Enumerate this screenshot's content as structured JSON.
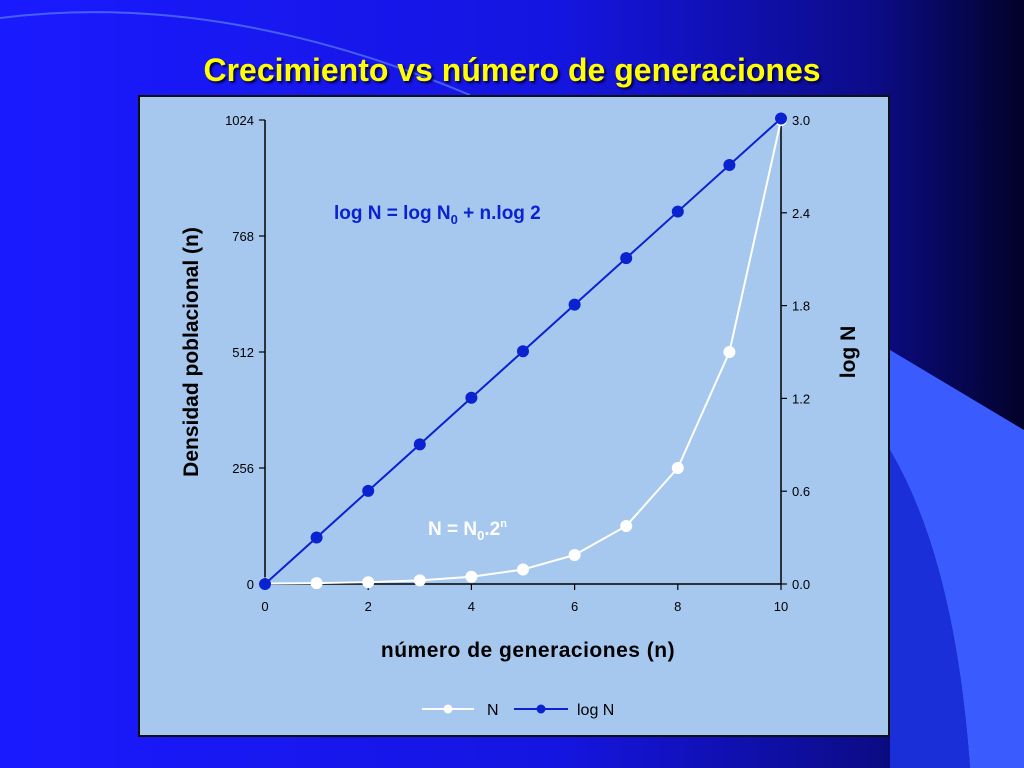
{
  "slide": {
    "title": "Crecimiento vs número de generaciones"
  },
  "colors": {
    "panel_background": "#a6c8ee",
    "series_N": "#ffffff",
    "series_logN": "#0a22d0",
    "title": "#ffff00"
  },
  "chart_data": {
    "type": "line",
    "x": [
      0,
      1,
      2,
      3,
      4,
      5,
      6,
      7,
      8,
      9,
      10
    ],
    "xticks": [
      0,
      2,
      4,
      6,
      8,
      10
    ],
    "xlim": [
      0,
      10
    ],
    "xlabel": "número de generaciones (n)",
    "ylabel_left": "Densidad poblacional (n)",
    "ylabel_right": "log N",
    "yticks_left": [
      0,
      256,
      512,
      768,
      1024
    ],
    "ylim_left": [
      0,
      1024
    ],
    "yticks_right": [
      "0.0",
      "0.6",
      "1.2",
      "1.8",
      "2.4",
      "3.0"
    ],
    "ylim_right": [
      0,
      3.0
    ],
    "series": [
      {
        "name": "N",
        "axis": "left",
        "color": "#ffffff",
        "values": [
          1,
          2,
          4,
          8,
          16,
          32,
          64,
          128,
          256,
          512,
          1024
        ]
      },
      {
        "name": "log N",
        "axis": "right",
        "color": "#0a22d0",
        "values": [
          0.0,
          0.301,
          0.602,
          0.903,
          1.204,
          1.505,
          1.806,
          2.107,
          2.408,
          2.709,
          3.01
        ]
      }
    ],
    "annotations": {
      "log_formula": {
        "prefix": "log N = log N",
        "sub": "0",
        "suffix": " + n.log 2"
      },
      "exp_formula": {
        "prefix": "N = N",
        "sub": "0",
        "mid": ".2",
        "sup": "n"
      }
    },
    "legend": {
      "position": "bottom-center",
      "items": [
        "N",
        "log N"
      ]
    },
    "grid": false
  }
}
